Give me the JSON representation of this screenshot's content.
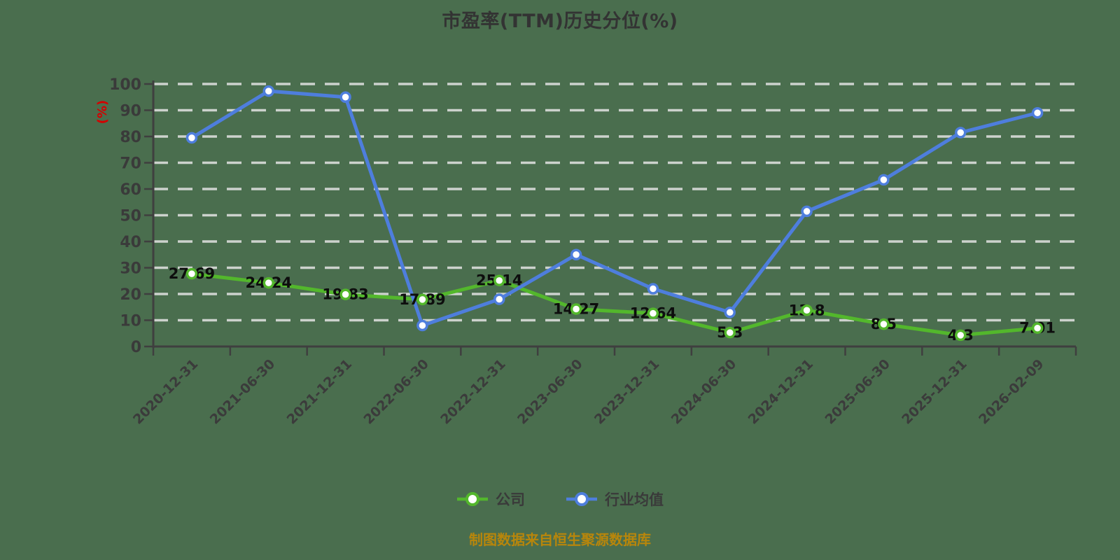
{
  "colors": {
    "background": "#4a6e4e",
    "grid": "#cdd2cd",
    "axis": "#3f3f3f",
    "title_text": "#333333",
    "tick_label": "#3a3a3a",
    "data_label": "#0d0d0d",
    "company_green": "#53b72c",
    "industry_blue": "#4e7edd",
    "ylabel_red": "#d40000",
    "source_gold": "#b8860b"
  },
  "chart_data": {
    "type": "line",
    "title": "市盈率(TTM)历史分位(%)",
    "ylabel": "(%)",
    "source_note": "制图数据来自恒生聚源数据库",
    "grid": true,
    "legend_position": "bottom",
    "ylim": [
      0,
      100
    ],
    "ytick_interval": 10,
    "yticks": [
      0,
      10,
      20,
      30,
      40,
      50,
      60,
      70,
      80,
      90,
      100
    ],
    "categories": [
      "2020-12-31",
      "2021-06-30",
      "2021-12-31",
      "2022-06-30",
      "2022-12-31",
      "2023-06-30",
      "2023-12-31",
      "2024-06-30",
      "2024-12-31",
      "2025-06-30",
      "2025-12-31",
      "2026-02-09"
    ],
    "series": [
      {
        "name": "公司",
        "color": "#53b72c",
        "show_point_labels": true,
        "values": [
          27.69,
          24.24,
          19.83,
          17.89,
          25.14,
          14.27,
          12.64,
          5.3,
          13.8,
          8.5,
          4.3,
          7.01
        ]
      },
      {
        "name": "行业均值",
        "color": "#4e7edd",
        "show_point_labels": false,
        "values": [
          79.5,
          97.3,
          95,
          8,
          18,
          35,
          22,
          13,
          51.5,
          63.5,
          81.5,
          89
        ]
      }
    ]
  }
}
